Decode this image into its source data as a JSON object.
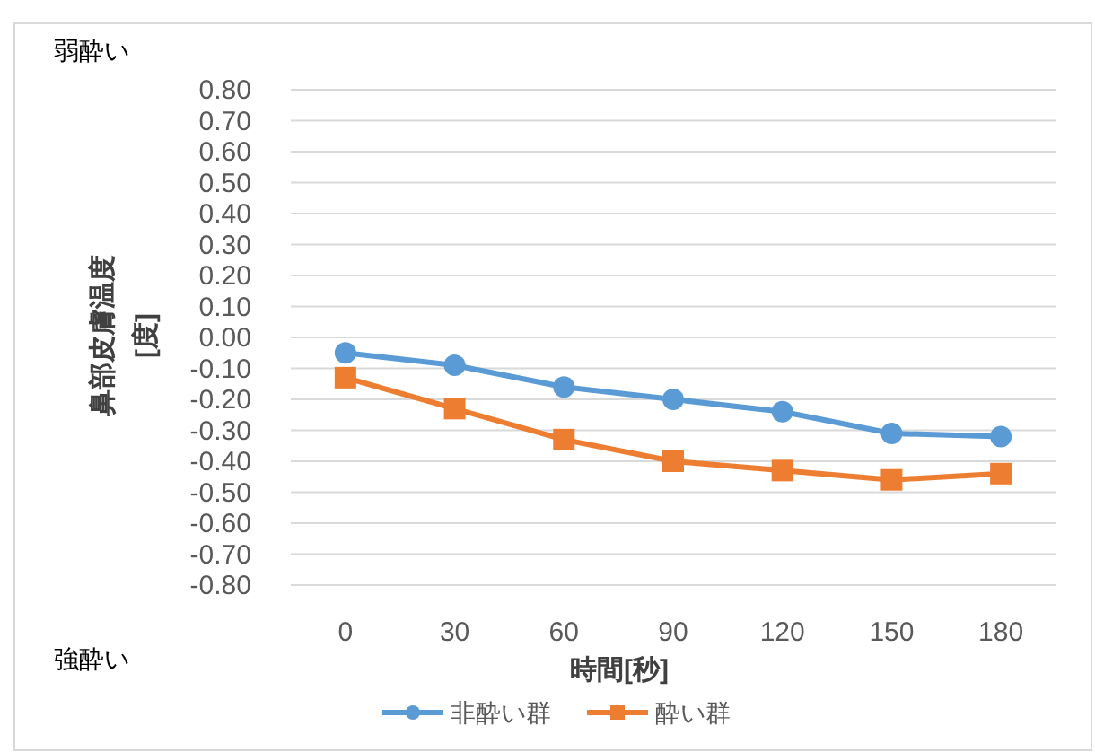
{
  "chart_data": {
    "type": "line",
    "xlabel": "時間[秒]",
    "ylabel": "鼻部皮膚温度\n[度]",
    "categories": [
      "0",
      "30",
      "60",
      "90",
      "120",
      "150",
      "180"
    ],
    "series": [
      {
        "name": "非酔い群",
        "color": "#5b9bd5",
        "marker": "circle",
        "values": [
          -0.05,
          -0.09,
          -0.16,
          -0.2,
          -0.24,
          -0.31,
          -0.32
        ]
      },
      {
        "name": "酔い群",
        "color": "#ed7d31",
        "marker": "square",
        "values": [
          -0.13,
          -0.23,
          -0.33,
          -0.4,
          -0.43,
          -0.46,
          -0.44
        ]
      }
    ],
    "ylim": [
      -0.8,
      0.8
    ],
    "yticks": [
      {
        "value": 0.8,
        "label": "0.80"
      },
      {
        "value": 0.7,
        "label": "0.70"
      },
      {
        "value": 0.6,
        "label": "0.60"
      },
      {
        "value": 0.5,
        "label": "0.50"
      },
      {
        "value": 0.4,
        "label": "0.40"
      },
      {
        "value": 0.3,
        "label": "0.30"
      },
      {
        "value": 0.2,
        "label": "0.20"
      },
      {
        "value": 0.1,
        "label": "0.10"
      },
      {
        "value": 0,
        "label": "0.00"
      },
      {
        "value": -0.1,
        "label": "-0.10"
      },
      {
        "value": -0.2,
        "label": "-0.20"
      },
      {
        "value": -0.3,
        "label": "-0.30"
      },
      {
        "value": -0.4,
        "label": "-0.40"
      },
      {
        "value": -0.5,
        "label": "-0.50"
      },
      {
        "value": -0.6,
        "label": "-0.60"
      },
      {
        "value": -0.7,
        "label": "-0.70"
      },
      {
        "value": -0.8,
        "label": "-0.80"
      }
    ],
    "grid": "y",
    "legend": "bottom",
    "annotations": [
      "弱酔い",
      "強酔い"
    ]
  }
}
